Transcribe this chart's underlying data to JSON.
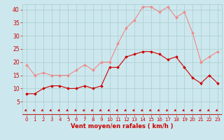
{
  "hours": [
    0,
    1,
    2,
    3,
    4,
    5,
    6,
    7,
    8,
    9,
    10,
    11,
    12,
    13,
    14,
    15,
    16,
    17,
    18,
    19,
    20,
    21,
    22,
    23
  ],
  "moyen": [
    8,
    8,
    10,
    11,
    11,
    10,
    10,
    11,
    10,
    11,
    18,
    18,
    22,
    23,
    24,
    24,
    23,
    21,
    22,
    18,
    14,
    12,
    15,
    12
  ],
  "rafales": [
    19,
    15,
    16,
    15,
    15,
    15,
    17,
    19,
    17,
    20,
    20,
    27,
    33,
    36,
    41,
    41,
    39,
    41,
    37,
    39,
    31,
    20,
    22,
    24
  ],
  "bg_color": "#cce8ee",
  "grid_color": "#aacccc",
  "line_moyen_color": "#cc0000",
  "line_rafales_color": "#ee8888",
  "xlabel": "Vent moyen/en rafales ( km/h )",
  "ylim": [
    0,
    42
  ],
  "yticks": [
    5,
    10,
    15,
    20,
    25,
    30,
    35,
    40
  ],
  "xticks": [
    0,
    1,
    2,
    3,
    4,
    5,
    6,
    7,
    8,
    9,
    10,
    11,
    12,
    13,
    14,
    15,
    16,
    17,
    18,
    19,
    20,
    21,
    22,
    23
  ]
}
